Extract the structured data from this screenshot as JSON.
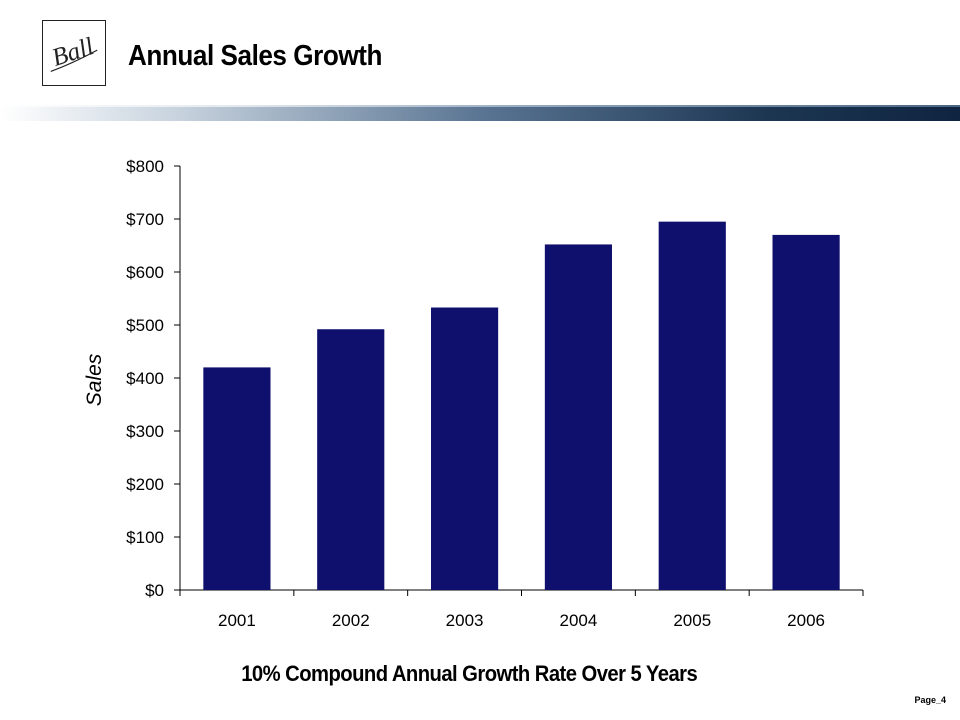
{
  "header": {
    "title": "Annual Sales Growth",
    "logo_text": "Ball"
  },
  "chart_data": {
    "type": "bar",
    "categories": [
      "2001",
      "2002",
      "2003",
      "2004",
      "2005",
      "2006"
    ],
    "values": [
      420,
      492,
      533,
      652,
      695,
      670
    ],
    "ylabel": "Sales",
    "xlabel": "",
    "ylim": [
      0,
      800
    ],
    "yticks": [
      0,
      100,
      200,
      300,
      400,
      500,
      600,
      700,
      800
    ],
    "ytick_labels": [
      "$0",
      "$100",
      "$200",
      "$300",
      "$400",
      "$500",
      "$600",
      "$700",
      "$800"
    ],
    "bar_color": "#0f0f6e",
    "grid": false,
    "legend": "none"
  },
  "footer": {
    "note": "10% Compound Annual Growth Rate Over 5 Years",
    "page": "Page_4"
  },
  "colors": {
    "rule_dark": "#0f2440",
    "bar": "#0f0f6e"
  }
}
